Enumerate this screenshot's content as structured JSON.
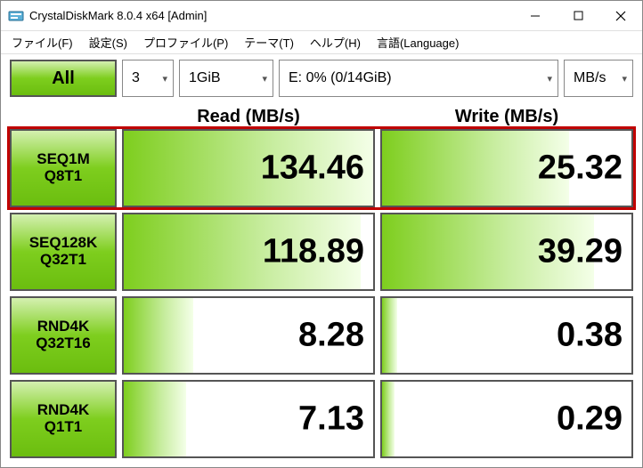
{
  "window": {
    "title": "CrystalDiskMark 8.0.4 x64 [Admin]"
  },
  "menu": {
    "file": "ファイル(F)",
    "settings": "設定(S)",
    "profile": "プロファイル(P)",
    "theme": "テーマ(T)",
    "help": "ヘルプ(H)",
    "language": "言語(Language)"
  },
  "controls": {
    "all_label": "All",
    "count": "3",
    "size": "1GiB",
    "drive": "E: 0% (0/14GiB)",
    "unit": "MB/s"
  },
  "headers": {
    "read": "Read (MB/s)",
    "write": "Write (MB/s)"
  },
  "rows": [
    {
      "label1": "SEQ1M",
      "label2": "Q8T1",
      "read": "134.46",
      "read_fill": 100,
      "write": "25.32",
      "write_fill": 75,
      "highlight": true
    },
    {
      "label1": "SEQ128K",
      "label2": "Q32T1",
      "read": "118.89",
      "read_fill": 95,
      "write": "39.29",
      "write_fill": 85,
      "highlight": false
    },
    {
      "label1": "RND4K",
      "label2": "Q32T16",
      "read": "8.28",
      "read_fill": 28,
      "write": "0.38",
      "write_fill": 6,
      "highlight": false
    },
    {
      "label1": "RND4K",
      "label2": "Q1T1",
      "read": "7.13",
      "read_fill": 25,
      "write": "0.29",
      "write_fill": 5,
      "highlight": false
    }
  ],
  "colors": {
    "highlight_border": "#c00000",
    "green_grad_light": "#d4f0b0",
    "green_grad_mid": "#7ece1e",
    "green_grad_dark": "#6bbd0f",
    "cell_border": "#555555"
  }
}
